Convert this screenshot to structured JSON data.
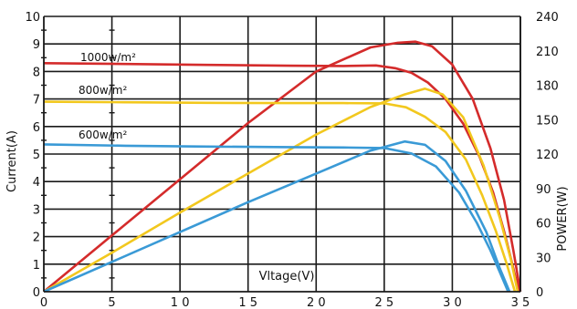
{
  "chart_data": {
    "type": "line",
    "xlabel": "Vltage(V)",
    "ylabel_left": "Current(A)",
    "ylabel_right": "POWER(W)",
    "xlim": [
      0,
      35
    ],
    "ylim_left": [
      0,
      10
    ],
    "ylim_right": [
      0,
      240
    ],
    "x_ticks": [
      0,
      5,
      10,
      15,
      20,
      25,
      30,
      35
    ],
    "x_tick_labels": [
      "0",
      "5",
      "1 0",
      "1 5",
      "2 0",
      "2 5",
      "3 0",
      "3 5"
    ],
    "y_left_ticks": [
      0,
      1,
      2,
      3,
      4,
      5,
      6,
      7,
      8,
      9,
      10
    ],
    "y_left_tick_labels": [
      "0",
      "1",
      "2",
      "3",
      "4",
      "5",
      "6",
      "7",
      "8",
      "9",
      "10"
    ],
    "y_right_ticks": [
      0,
      30,
      60,
      90,
      120,
      150,
      180,
      210,
      240
    ],
    "y_right_tick_labels": [
      "0",
      "30",
      "60",
      "90",
      "120",
      "150",
      "180",
      "210",
      "240"
    ],
    "grid": true,
    "series": [
      {
        "name": "1000w/m²",
        "color": "#d42b2b",
        "current": {
          "x": [
            0,
            6,
            12,
            18,
            22,
            24.4,
            25.8,
            27,
            28.2,
            29.5,
            30.8,
            32,
            33,
            33.8,
            34.4,
            34.9
          ],
          "y": [
            8.3,
            8.27,
            8.24,
            8.21,
            8.2,
            8.22,
            8.12,
            7.95,
            7.6,
            7.0,
            6.1,
            4.9,
            3.6,
            2.2,
            1.0,
            0
          ]
        },
        "power": {
          "x": [
            0,
            5,
            10,
            15,
            20,
            24,
            26,
            27.3,
            28.5,
            30,
            31.5,
            32.8,
            33.8,
            34.5,
            35
          ],
          "y": [
            0,
            49,
            98,
            147,
            192,
            213,
            217,
            218,
            214,
            198,
            168,
            125,
            80,
            35,
            0
          ]
        }
      },
      {
        "name": "800w/m²",
        "color": "#f2c81e",
        "current": {
          "x": [
            0,
            6,
            12,
            18,
            22,
            25,
            26.6,
            28,
            29.5,
            31,
            32.2,
            33.2,
            34,
            34.6
          ],
          "y": [
            6.9,
            6.88,
            6.86,
            6.85,
            6.85,
            6.84,
            6.7,
            6.35,
            5.8,
            4.8,
            3.5,
            2.2,
            1.0,
            0
          ]
        },
        "power": {
          "x": [
            0,
            5,
            10,
            15,
            20,
            24,
            26.5,
            28,
            29.3,
            30.8,
            32.3,
            33.5,
            34.3,
            34.8
          ],
          "y": [
            0,
            34,
            69,
            103,
            137,
            161,
            172,
            177,
            172,
            152,
            110,
            64,
            28,
            0
          ]
        }
      },
      {
        "name": "600w/m²",
        "color": "#3a9ad6",
        "current": {
          "x": [
            0,
            6,
            12,
            18,
            22,
            25,
            27,
            28.8,
            30.5,
            31.8,
            32.8,
            33.5,
            34.1
          ],
          "y": [
            5.35,
            5.3,
            5.27,
            5.25,
            5.24,
            5.22,
            5.02,
            4.55,
            3.6,
            2.5,
            1.5,
            0.7,
            0
          ]
        },
        "power": {
          "x": [
            0,
            5,
            10,
            15,
            20,
            24,
            26.5,
            28,
            29.5,
            31,
            32.5,
            33.5,
            34.2
          ],
          "y": [
            0,
            26,
            52,
            78,
            103,
            123,
            131,
            128,
            114,
            88,
            52,
            20,
            0
          ]
        }
      }
    ],
    "annotations": [
      "1000w/m²",
      "800w/m²",
      "600w/m²"
    ]
  }
}
